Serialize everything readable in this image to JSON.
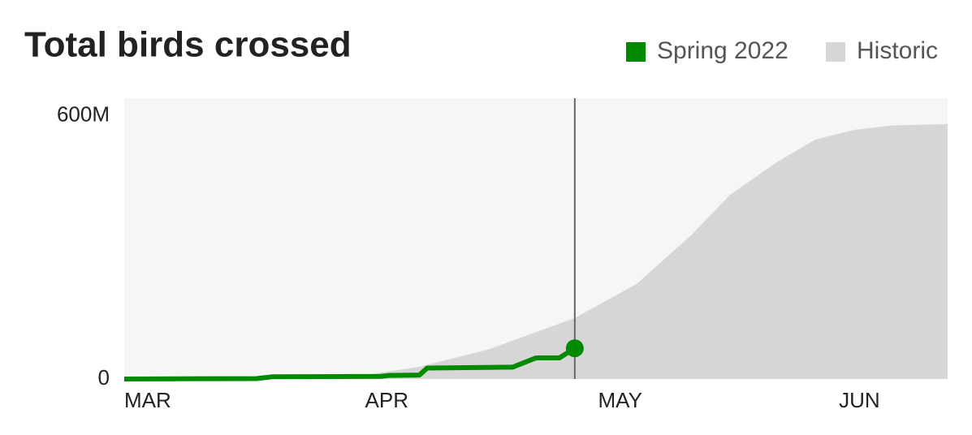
{
  "chart_data": {
    "type": "area-line",
    "title": "Total birds crossed",
    "xlim": [
      0,
      106
    ],
    "xticks": [
      {
        "value": 0,
        "label": "MAR"
      },
      {
        "value": 31,
        "label": "APR"
      },
      {
        "value": 61,
        "label": "MAY"
      },
      {
        "value": 92,
        "label": "JUN"
      }
    ],
    "ylim": [
      0,
      640000000
    ],
    "yticks": [
      0,
      {
        "value": 600000000,
        "label": "600M"
      }
    ],
    "legend": "top-right",
    "series": [
      {
        "name": "Spring 2022",
        "color": "#008a00",
        "x": [
          0,
          17,
          19,
          33,
          34,
          38,
          39,
          50,
          53,
          56,
          58
        ],
        "values": [
          0,
          1000000,
          5000000,
          6000000,
          8000000,
          9000000,
          25000000,
          27000000,
          48000000,
          48000000,
          70000000
        ]
      },
      {
        "name": "Historic",
        "color": "#d6d6d6",
        "x": [
          0,
          20,
          31,
          38,
          47,
          58,
          66,
          73,
          78,
          84,
          89,
          94,
          99,
          106
        ],
        "values": [
          0,
          2000000,
          9000000,
          28000000,
          68000000,
          139000000,
          217000000,
          328000000,
          420000000,
          494000000,
          546000000,
          568000000,
          578000000,
          581000000
        ]
      }
    ]
  }
}
